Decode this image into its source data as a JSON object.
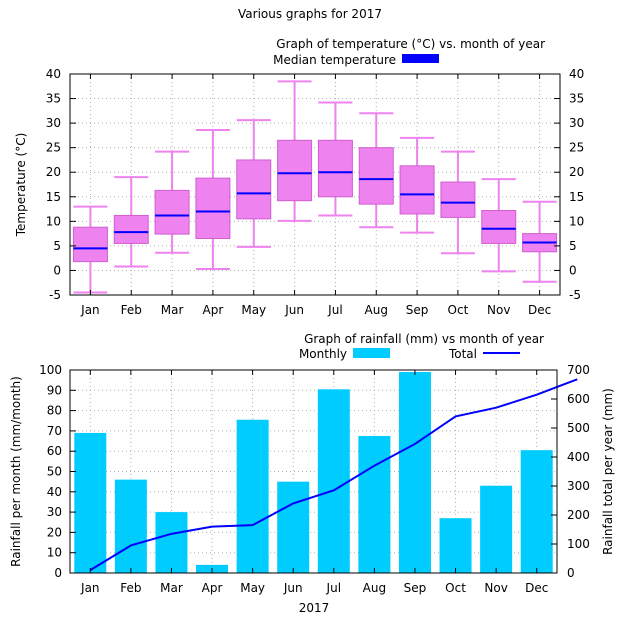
{
  "figure": {
    "title": "Various graphs for 2017"
  },
  "chart_data": [
    {
      "type": "box",
      "title": "Graph of temperature (°C) vs. month of year",
      "ylabel": "Temperature (°C)",
      "ylim": [
        -5,
        40
      ],
      "ytick_step": 5,
      "y2_ticks": true,
      "grid": true,
      "legend_position": "top-right",
      "legend_label": "Median temperature",
      "box_color": "#ee82ee",
      "median_color": "#0000ff",
      "categories": [
        "Jan",
        "Feb",
        "Mar",
        "Apr",
        "May",
        "Jun",
        "Jul",
        "Aug",
        "Sep",
        "Oct",
        "Nov",
        "Dec"
      ],
      "stats": [
        {
          "min": -4.5,
          "q1": 1.8,
          "median": 4.5,
          "q3": 8.8,
          "max": 13.0
        },
        {
          "min": 0.8,
          "q1": 5.5,
          "median": 7.8,
          "q3": 11.2,
          "max": 19.0
        },
        {
          "min": 3.6,
          "q1": 7.4,
          "median": 11.2,
          "q3": 16.3,
          "max": 24.2
        },
        {
          "min": 0.3,
          "q1": 6.5,
          "median": 12.0,
          "q3": 18.8,
          "max": 28.6
        },
        {
          "min": 4.8,
          "q1": 10.5,
          "median": 15.7,
          "q3": 22.5,
          "max": 30.6
        },
        {
          "min": 10.1,
          "q1": 14.2,
          "median": 19.8,
          "q3": 26.5,
          "max": 38.5
        },
        {
          "min": 11.2,
          "q1": 15.0,
          "median": 20.0,
          "q3": 26.5,
          "max": 34.2
        },
        {
          "min": 8.8,
          "q1": 13.5,
          "median": 18.6,
          "q3": 25.0,
          "max": 32.0
        },
        {
          "min": 7.7,
          "q1": 11.5,
          "median": 15.5,
          "q3": 21.3,
          "max": 27.0
        },
        {
          "min": 3.5,
          "q1": 10.8,
          "median": 13.8,
          "q3": 18.0,
          "max": 24.2
        },
        {
          "min": -0.2,
          "q1": 5.5,
          "median": 8.5,
          "q3": 12.2,
          "max": 18.6
        },
        {
          "min": -2.3,
          "q1": 3.8,
          "median": 5.7,
          "q3": 7.5,
          "max": 14.0
        }
      ]
    },
    {
      "type": "bar+line",
      "title": "Graph of rainfall (mm) vs month of year",
      "xlabel": "2017",
      "ylabel": "Rainfall per month (mm/month)",
      "y2label": "Rainfall total per year (mm)",
      "ylim": [
        0,
        100
      ],
      "ytick_step": 10,
      "y2lim": [
        0,
        700
      ],
      "y2tick_step": 100,
      "grid": true,
      "legend_position": "top",
      "bar_color": "#00ccff",
      "line_color": "#0000ff",
      "categories": [
        "Jan",
        "Feb",
        "Mar",
        "Apr",
        "May",
        "Jun",
        "Jul",
        "Aug",
        "Sep",
        "Oct",
        "Nov",
        "Dec"
      ],
      "series": [
        {
          "name": "Monthly",
          "axis": "y",
          "values": [
            69,
            46,
            30,
            4,
            75.5,
            45,
            90.5,
            67.5,
            99,
            27,
            43,
            60.5
          ]
        },
        {
          "name": "Total",
          "axis": "y2",
          "x": [
            0.5,
            1.5,
            2.5,
            3.5,
            4.5,
            5.5,
            6.5,
            7.5,
            8.5,
            9.5,
            10.5,
            11.5,
            12.5
          ],
          "values": [
            10,
            95,
            135,
            160,
            165,
            240,
            285,
            370,
            445,
            540,
            570,
            615,
            668
          ]
        }
      ]
    }
  ]
}
